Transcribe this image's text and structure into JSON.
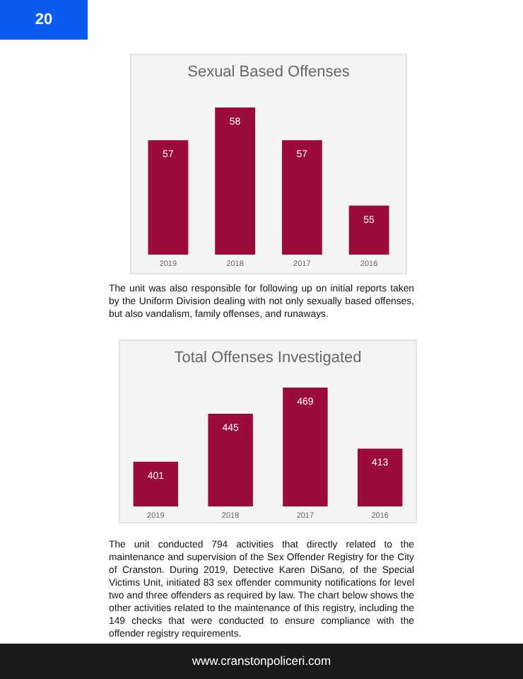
{
  "chart_data": [
    {
      "type": "bar",
      "title": "Sexual Based Offenses",
      "categories": [
        "2019",
        "2018",
        "2017",
        "2016"
      ],
      "values": [
        57,
        58,
        57,
        55
      ],
      "color": "#9c0b3e",
      "ylim": [
        53.5,
        58
      ],
      "tick_labels": "x",
      "data_labels": true,
      "annotations": [
        "20",
        "The unit was also responsible for following up on initial reports taken by the Uniform Division dealing with not only sexually based offenses, but also vandalism, family offenses, and runaways."
      ]
    },
    {
      "type": "bar",
      "title": "Total Offenses Investigated",
      "categories": [
        "2019",
        "2018",
        "2017",
        "2016"
      ],
      "values": [
        401,
        445,
        469,
        413
      ],
      "color": "#9c0b3e",
      "ylim": [
        360,
        469
      ],
      "tick_labels": "x",
      "data_labels": true,
      "annotations": [
        "The unit conducted 794 activities that directly related to the maintenance and supervision of the Sex Offender Registry for the City of Cranston. During 2019, Detective Karen DiSano, of the Special Victims Unit, initiated 83 sex offender community notifications for level two and three offenders as required by law. The chart below shows the other activities related to the maintenance of this registry, including the 149 checks that were conducted to ensure compliance with the offender registry requirements.",
        "www.cranstonpoliceri.com"
      ]
    }
  ]
}
